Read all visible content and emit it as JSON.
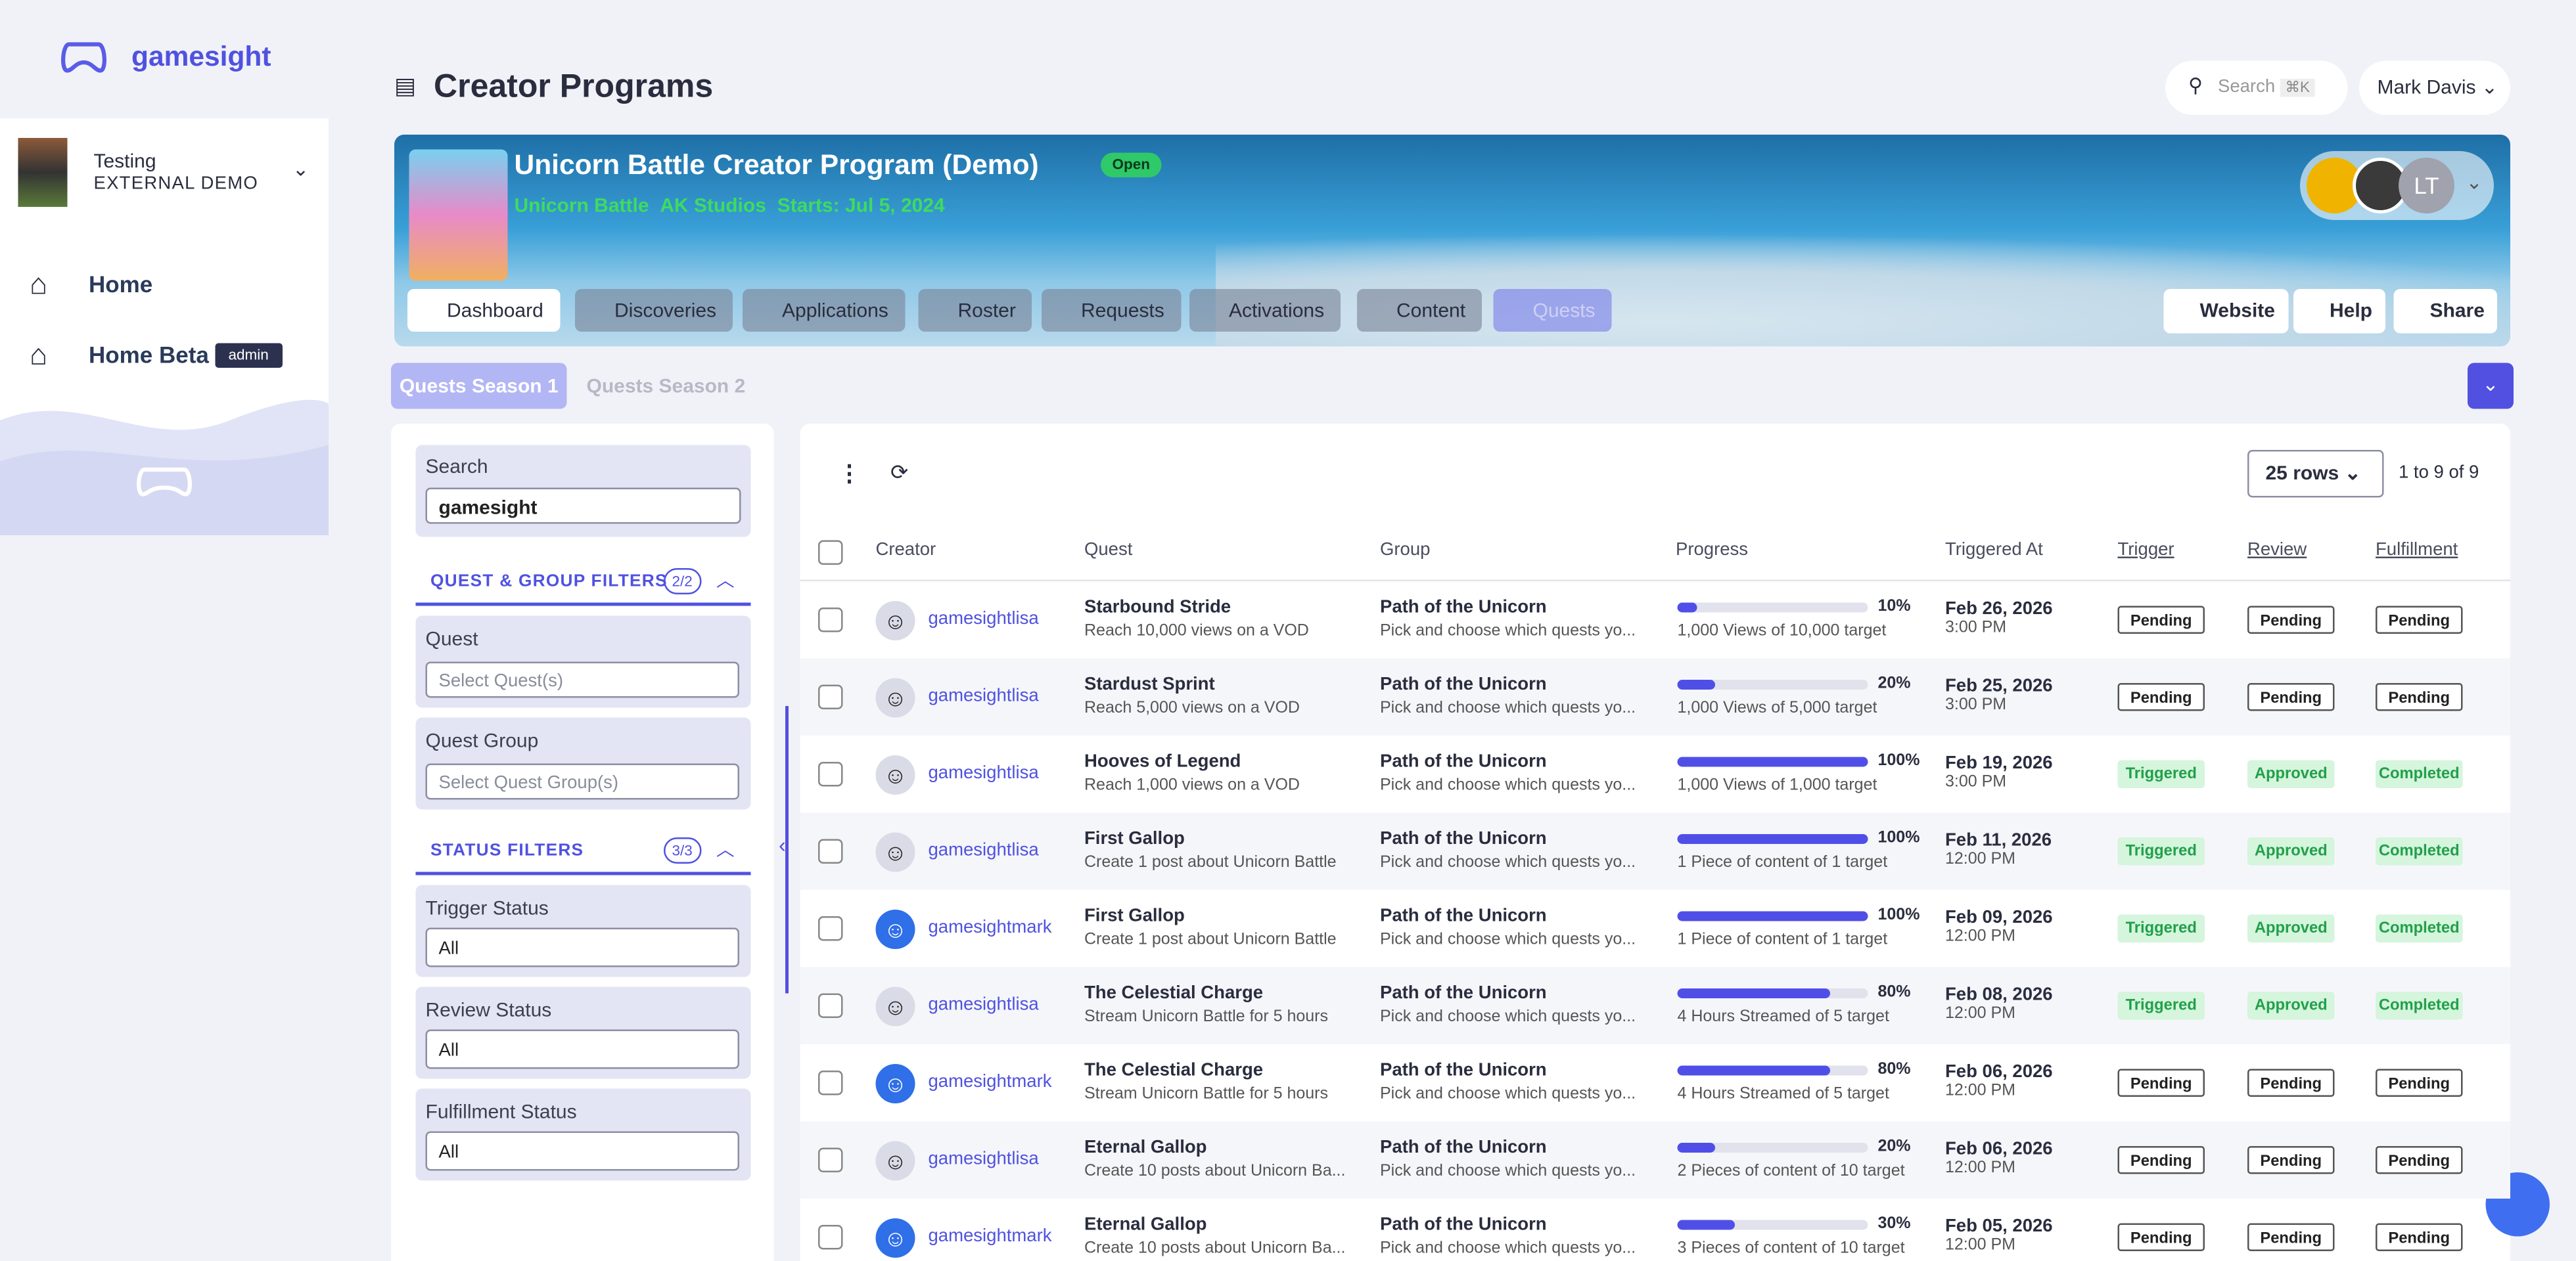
{
  "sidebar": {
    "brand": "gamesight",
    "org": "Testing",
    "org_sub": "EXTERNAL DEMO",
    "nav": [
      "Home",
      "Home Beta"
    ],
    "badge": "admin"
  },
  "header": {
    "title": "Creator Programs",
    "search": "Search",
    "shortcut": "⌘K",
    "user": "Mark Davis"
  },
  "program": {
    "title": "Unicorn Battle Creator Program (Demo)",
    "status": "Open",
    "meta": [
      "Unicorn Battle",
      "AK Studios",
      "Starts: Jul 5, 2024"
    ],
    "avatar_initials": "LT",
    "tabs": [
      "Dashboard",
      "Discoveries",
      "Applications",
      "Roster",
      "Requests",
      "Activations",
      "Content",
      "Quests"
    ],
    "actions": [
      "Website",
      "Help",
      "Share"
    ]
  },
  "seasons": [
    "Quests Season 1",
    "Quests Season 2"
  ],
  "filters": {
    "search_label": "Search",
    "search_value": "gamesight",
    "groups": [
      {
        "title": "QUEST & GROUP FILTERS",
        "count": "2/2",
        "fields": [
          {
            "label": "Quest",
            "placeholder": "Select Quest(s)"
          },
          {
            "label": "Quest Group",
            "placeholder": "Select Quest Group(s)"
          }
        ]
      },
      {
        "title": "STATUS FILTERS",
        "count": "3/3",
        "fields": [
          {
            "label": "Trigger Status",
            "value": "All"
          },
          {
            "label": "Review Status",
            "value": "All"
          },
          {
            "label": "Fulfillment Status",
            "value": "All"
          }
        ]
      }
    ]
  },
  "table": {
    "rows_select": "25 rows",
    "range": "1 to 9 of 9",
    "columns": [
      "Creator",
      "Quest",
      "Group",
      "Progress",
      "Triggered At",
      "Trigger",
      "Review",
      "Fulfillment"
    ],
    "rows": [
      {
        "creator": "gamesightlisa",
        "avatar_color": "#d9dbe6",
        "quest": "Starbound Stride",
        "quest_desc": "Reach 10,000 views on a VOD",
        "group": "Path of the Unicorn",
        "group_desc": "Pick and choose which quests yo...",
        "progress": 10,
        "progress_label": "10%",
        "progress_desc": "1,000 Views of 10,000 target",
        "date": "Feb 26, 2026",
        "time": "3:00 PM",
        "trigger": "Pending",
        "review": "Pending",
        "fulfillment": "Pending",
        "status_color": "#ffffff"
      },
      {
        "creator": "gamesightlisa",
        "avatar_color": "#d9dbe6",
        "quest": "Stardust Sprint",
        "quest_desc": "Reach 5,000 views on a VOD",
        "group": "Path of the Unicorn",
        "group_desc": "Pick and choose which quests yo...",
        "progress": 20,
        "progress_label": "20%",
        "progress_desc": "1,000 Views of 5,000 target",
        "date": "Feb 25, 2026",
        "time": "3:00 PM",
        "trigger": "Pending",
        "review": "Pending",
        "fulfillment": "Pending",
        "status_color": "#ffffff"
      },
      {
        "creator": "gamesightlisa",
        "avatar_color": "#d9dbe6",
        "quest": "Hooves of Legend",
        "quest_desc": "Reach 1,000 views on a VOD",
        "group": "Path of the Unicorn",
        "group_desc": "Pick and choose which quests yo...",
        "progress": 100,
        "progress_label": "100%",
        "progress_desc": "1,000 Views of 1,000 target",
        "date": "Feb 19, 2026",
        "time": "3:00 PM",
        "trigger": "Triggered",
        "review": "Approved",
        "fulfillment": "Completed",
        "status_color": "#d5f5dd"
      },
      {
        "creator": "gamesightlisa",
        "avatar_color": "#d9dbe6",
        "quest": "First Gallop",
        "quest_desc": "Create 1 post about Unicorn Battle",
        "group": "Path of the Unicorn",
        "group_desc": "Pick and choose which quests yo...",
        "progress": 100,
        "progress_label": "100%",
        "progress_desc": "1 Piece of content of 1 target",
        "date": "Feb 11, 2026",
        "time": "12:00 PM",
        "trigger": "Triggered",
        "review": "Approved",
        "fulfillment": "Completed",
        "status_color": "#d5f5dd"
      },
      {
        "creator": "gamesightmark",
        "avatar_color": "#2f6fe8",
        "quest": "First Gallop",
        "quest_desc": "Create 1 post about Unicorn Battle",
        "group": "Path of the Unicorn",
        "group_desc": "Pick and choose which quests yo...",
        "progress": 100,
        "progress_label": "100%",
        "progress_desc": "1 Piece of content of 1 target",
        "date": "Feb 09, 2026",
        "time": "12:00 PM",
        "trigger": "Triggered",
        "review": "Approved",
        "fulfillment": "Completed",
        "status_color": "#d5f5dd"
      },
      {
        "creator": "gamesightlisa",
        "avatar_color": "#d9dbe6",
        "quest": "The Celestial Charge",
        "quest_desc": "Stream Unicorn Battle for 5 hours",
        "group": "Path of the Unicorn",
        "group_desc": "Pick and choose which quests yo...",
        "progress": 80,
        "progress_label": "80%",
        "progress_desc": "4 Hours Streamed of 5 target",
        "date": "Feb 08, 2026",
        "time": "12:00 PM",
        "trigger": "Triggered",
        "review": "Approved",
        "fulfillment": "Completed",
        "status_color": "#d5f5dd"
      },
      {
        "creator": "gamesightmark",
        "avatar_color": "#2f6fe8",
        "quest": "The Celestial Charge",
        "quest_desc": "Stream Unicorn Battle for 5 hours",
        "group": "Path of the Unicorn",
        "group_desc": "Pick and choose which quests yo...",
        "progress": 80,
        "progress_label": "80%",
        "progress_desc": "4 Hours Streamed of 5 target",
        "date": "Feb 06, 2026",
        "time": "12:00 PM",
        "trigger": "Pending",
        "review": "Pending",
        "fulfillment": "Pending",
        "status_color": "#ffffff"
      },
      {
        "creator": "gamesightlisa",
        "avatar_color": "#d9dbe6",
        "quest": "Eternal Gallop",
        "quest_desc": "Create 10 posts about Unicorn Ba...",
        "group": "Path of the Unicorn",
        "group_desc": "Pick and choose which quests yo...",
        "progress": 20,
        "progress_label": "20%",
        "progress_desc": "2 Pieces of content of 10 target",
        "date": "Feb 06, 2026",
        "time": "12:00 PM",
        "trigger": "Pending",
        "review": "Pending",
        "fulfillment": "Pending",
        "status_color": "#ffffff"
      },
      {
        "creator": "gamesightmark",
        "avatar_color": "#2f6fe8",
        "quest": "Eternal Gallop",
        "quest_desc": "Create 10 posts about Unicorn Ba...",
        "group": "Path of the Unicorn",
        "group_desc": "Pick and choose which quests yo...",
        "progress": 30,
        "progress_label": "30%",
        "progress_desc": "3 Pieces of content of 10 target",
        "date": "Feb 05, 2026",
        "time": "12:00 PM",
        "trigger": "Pending",
        "review": "Pending",
        "fulfillment": "Pending",
        "status_color": "#ffffff"
      }
    ]
  }
}
